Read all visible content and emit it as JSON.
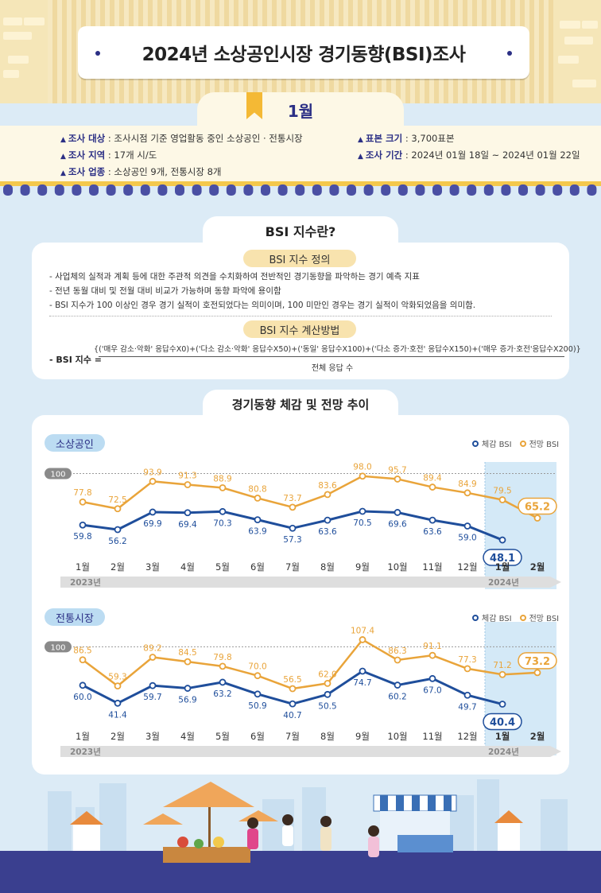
{
  "header": {
    "title": "2024년 소상공인시장 경기동향(BSI)조사",
    "month": "1월"
  },
  "info": {
    "target_label": "조사 대상",
    "target_value": " : 조사시점 기준 영업활동 중인 소상공인 · 전통시장",
    "region_label": "조사 지역",
    "region_value": " : 17개 시/도",
    "industry_label": "조사 업종",
    "industry_value": " : 소상공인 9개, 전통시장 8개",
    "sample_label": "표본 크기",
    "sample_value": " : 3,700표본",
    "period_label": "조사 기간",
    "period_value": " : 2024년 01월 18일 ~ 2024년 01월 22일"
  },
  "bsi": {
    "title": "BSI 지수란?",
    "def_title": "BSI 지수 정의",
    "def_lines": [
      "- 사업체의 실적과 계획 등에 대한 주관적 의견을 수치화하여 전반적인 경기동향을 파악하는 경기 예측 지표",
      "- 전년 동월 대비 및 전월 대비 비교가 가능하며 동향 파악에 용이함",
      "- BSI 지수가 100 이상인 경우 경기 실적이 호전되었다는 의미이며, 100 미만인 경우는 경기 실적이 악화되었음을 의미함."
    ],
    "calc_title": "BSI 지수 계산방법",
    "formula_label": "- BSI 지수 =",
    "formula_numerator": "{('매우 감소·악화' 응답수X0)+('다소 감소·악화' 응답수X50)+('동일' 응답수X100)+('다소 증가·호전' 응답수X150)+('매우 증가·호전'응답수X200)}",
    "formula_denominator": "전체 응답 수"
  },
  "trend_title": "경기동향 체감 및 전망 추이",
  "legend": {
    "actual": "체감 BSI",
    "forecast": "전망 BSI"
  },
  "colors": {
    "actual": "#1f4e9b",
    "forecast": "#e9a43a",
    "highlight": "#d4e9f7",
    "navy": "#2b2f85"
  },
  "chart_data": [
    {
      "type": "line",
      "title": "소상공인",
      "categories": [
        "1월",
        "2월",
        "3월",
        "4월",
        "5월",
        "6월",
        "7월",
        "8월",
        "9월",
        "10월",
        "11월",
        "12월",
        "1월",
        "2월"
      ],
      "year_labels": [
        "2023년",
        "2024년"
      ],
      "reference_line": 100,
      "reference_label": "100",
      "series": [
        {
          "name": "체감 BSI",
          "values": [
            59.8,
            56.2,
            69.9,
            69.4,
            70.3,
            63.9,
            57.3,
            63.6,
            70.5,
            69.6,
            63.6,
            59.0,
            48.1,
            null
          ]
        },
        {
          "name": "전망 BSI",
          "values": [
            77.8,
            72.5,
            93.9,
            91.3,
            88.9,
            80.8,
            73.7,
            83.6,
            98.0,
            95.7,
            89.4,
            84.9,
            79.5,
            65.2
          ]
        }
      ],
      "actual_labels": [
        "59.8",
        "56.2",
        "69.9",
        "69.4",
        "70.3",
        "63.9",
        "57.3",
        "63.6",
        "70.5",
        "69.6",
        "63.6",
        "59.0",
        "48.1"
      ],
      "forecast_labels": [
        "77.8",
        "72.5",
        "93.9",
        "91.3",
        "88.9",
        "80.8",
        "73.7",
        "83.6",
        "98.0",
        "95.7",
        "89.4",
        "84.9",
        "79.5",
        "65.2"
      ]
    },
    {
      "type": "line",
      "title": "전통시장",
      "categories": [
        "1월",
        "2월",
        "3월",
        "4월",
        "5월",
        "6월",
        "7월",
        "8월",
        "9월",
        "10월",
        "11월",
        "12월",
        "1월",
        "2월"
      ],
      "year_labels": [
        "2023년",
        "2024년"
      ],
      "reference_line": 100,
      "reference_label": "100",
      "series": [
        {
          "name": "체감 BSI",
          "values": [
            60.0,
            41.4,
            59.7,
            56.9,
            63.2,
            50.9,
            40.7,
            50.5,
            74.7,
            60.2,
            67.0,
            49.7,
            40.4,
            null
          ]
        },
        {
          "name": "전망 BSI",
          "values": [
            86.5,
            59.3,
            89.2,
            84.5,
            79.8,
            70.0,
            56.5,
            62.0,
            107.4,
            86.3,
            91.1,
            77.3,
            71.2,
            73.2
          ]
        }
      ],
      "actual_labels": [
        "60.0",
        "41.4",
        "59.7",
        "56.9",
        "63.2",
        "50.9",
        "40.7",
        "50.5",
        "74.7",
        "60.2",
        "67.0",
        "49.7",
        "40.4"
      ],
      "forecast_labels": [
        "86.5",
        "59.3",
        "89.2",
        "84.5",
        "79.8",
        "70.0",
        "56.5",
        "62.0",
        "107.4",
        "86.3",
        "91.1",
        "77.3",
        "71.2",
        "73.2"
      ]
    }
  ]
}
